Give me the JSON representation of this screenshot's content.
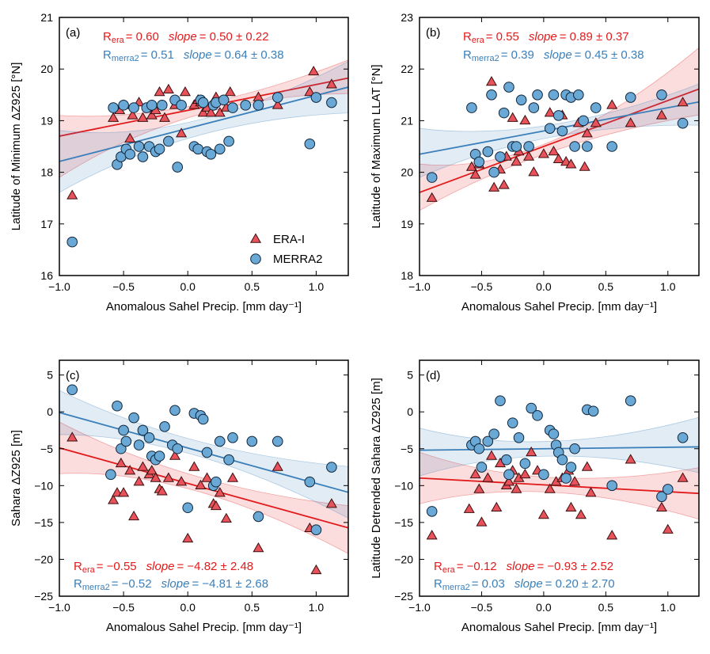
{
  "figure": {
    "colors": {
      "era": "#e31a1c",
      "merra": "#3a7fba",
      "era_face": "#e8525a",
      "merra_face": "#6aa8d6",
      "axis": "#000000"
    },
    "legend": {
      "era_label": "ERA-I",
      "merra_label": "MERRA2"
    }
  },
  "chart_data": [
    {
      "type": "scatter",
      "panel_label": "(a)",
      "xlabel": "Anomalous Sahel Precip. [mm day⁻¹]",
      "ylabel": "Latitude of Minimum ΔZ925 [°N]",
      "xlim": [
        -1.0,
        1.25
      ],
      "ylim": [
        16,
        21
      ],
      "xticks": [
        -1.0,
        -0.5,
        0.0,
        0.5,
        1.0
      ],
      "xtick_labels": [
        "−1.0",
        "−0.5",
        "0.0",
        "0.5",
        "1.0"
      ],
      "yticks": [
        16,
        17,
        18,
        19,
        20,
        21
      ],
      "ytick_labels": [
        "16",
        "17",
        "18",
        "19",
        "20",
        "21"
      ],
      "legend": true,
      "stats": {
        "era": {
          "r_prefix": "R",
          "r_sub": "era",
          "r_value": "= 0.60",
          "slope_label": "slope",
          "slope_value": "= 0.50 ± 0.22"
        },
        "merra": {
          "r_prefix": "R",
          "r_sub": "merra2",
          "r_value": "= 0.51",
          "slope_label": "slope",
          "slope_value": "= 0.64 ± 0.38"
        }
      },
      "series": [
        {
          "name": "ERA-I",
          "marker": "triangle",
          "fit": {
            "intercept": 19.2,
            "slope": 0.5,
            "band_lo": [
              0.8,
              0.1,
              0.3
            ],
            "band_hi": [
              0.4,
              0.1,
              0.35
            ]
          },
          "x": [
            -0.9,
            -0.58,
            -0.53,
            -0.5,
            -0.45,
            -0.43,
            -0.38,
            -0.35,
            -0.3,
            -0.28,
            -0.25,
            -0.22,
            -0.18,
            -0.15,
            -0.1,
            -0.05,
            -0.02,
            0.05,
            0.08,
            0.1,
            0.12,
            0.15,
            0.18,
            0.2,
            0.22,
            0.25,
            0.3,
            0.33,
            0.55,
            0.7,
            0.95,
            0.98,
            1.12
          ],
          "y": [
            17.55,
            19.05,
            19.2,
            19.3,
            18.65,
            19.1,
            19.35,
            19.05,
            19.25,
            19.1,
            19.2,
            19.55,
            19.05,
            19.6,
            19.3,
            18.75,
            19.55,
            19.3,
            19.4,
            19.35,
            19.15,
            19.25,
            19.15,
            19.35,
            19.45,
            19.15,
            19.25,
            19.55,
            19.45,
            19.3,
            19.55,
            19.95,
            19.7
          ]
        },
        {
          "name": "MERRA2",
          "marker": "circle",
          "fit": {
            "intercept": 18.85,
            "slope": 0.64,
            "band_lo": [
              0.6,
              0.15,
              0.5
            ],
            "band_hi": [
              0.6,
              0.15,
              0.5
            ]
          },
          "x": [
            -0.9,
            -0.58,
            -0.55,
            -0.52,
            -0.5,
            -0.48,
            -0.45,
            -0.42,
            -0.38,
            -0.35,
            -0.32,
            -0.3,
            -0.28,
            -0.25,
            -0.22,
            -0.2,
            -0.15,
            -0.1,
            -0.08,
            -0.05,
            0.05,
            0.08,
            0.1,
            0.12,
            0.15,
            0.18,
            0.2,
            0.22,
            0.25,
            0.28,
            0.32,
            0.35,
            0.45,
            0.55,
            0.7,
            0.95,
            1.0,
            1.12
          ],
          "y": [
            16.65,
            19.25,
            18.15,
            18.3,
            19.3,
            18.45,
            18.35,
            19.25,
            18.5,
            18.3,
            19.25,
            18.5,
            19.3,
            18.4,
            18.45,
            19.3,
            18.6,
            19.4,
            18.1,
            19.3,
            18.5,
            18.45,
            19.4,
            19.35,
            18.4,
            18.35,
            19.3,
            19.35,
            18.45,
            19.4,
            18.6,
            19.25,
            19.3,
            19.3,
            19.45,
            18.55,
            19.45,
            19.35
          ]
        }
      ]
    },
    {
      "type": "scatter",
      "panel_label": "(b)",
      "xlabel": "Anomalous Sahel Precip. [mm day⁻¹]",
      "ylabel": "Latitude of Maximum LLAT [°N]",
      "xlim": [
        -1.0,
        1.25
      ],
      "ylim": [
        18,
        23
      ],
      "xticks": [
        -1.0,
        -0.5,
        0.0,
        0.5,
        1.0
      ],
      "xtick_labels": [
        "−1.0",
        "−0.5",
        "0.0",
        "0.5",
        "1.0"
      ],
      "yticks": [
        18,
        19,
        20,
        21,
        22,
        23
      ],
      "ytick_labels": [
        "18",
        "19",
        "20",
        "21",
        "22",
        "23"
      ],
      "legend": false,
      "stats": {
        "era": {
          "r_prefix": "R",
          "r_sub": "era",
          "r_value": "= 0.55",
          "slope_label": "slope",
          "slope_value": "= 0.89 ± 0.37"
        },
        "merra": {
          "r_prefix": "R",
          "r_sub": "merra2",
          "r_value": "= 0.39",
          "slope_label": "slope",
          "slope_value": "= 0.45 ± 0.38"
        }
      },
      "series": [
        {
          "name": "ERA-I",
          "marker": "triangle",
          "fit": {
            "intercept": 20.5,
            "slope": 0.89,
            "band_lo": [
              0.35,
              0.1,
              0.5
            ],
            "band_hi": [
              0.55,
              0.1,
              0.8
            ]
          },
          "x": [
            -0.9,
            -0.58,
            -0.55,
            -0.52,
            -0.42,
            -0.4,
            -0.35,
            -0.32,
            -0.3,
            -0.25,
            -0.22,
            -0.2,
            -0.15,
            -0.12,
            -0.08,
            0.0,
            0.05,
            0.08,
            0.12,
            0.15,
            0.18,
            0.22,
            0.28,
            0.33,
            0.35,
            0.42,
            0.55,
            0.7,
            0.95,
            1.12
          ],
          "y": [
            19.5,
            20.1,
            19.95,
            20.15,
            21.75,
            19.7,
            20.05,
            19.75,
            20.3,
            21.05,
            20.2,
            20.4,
            21.0,
            20.3,
            20.0,
            20.35,
            21.15,
            20.4,
            20.25,
            21.1,
            20.2,
            20.15,
            20.95,
            20.1,
            20.75,
            20.95,
            21.3,
            20.95,
            21.1,
            21.35
          ]
        },
        {
          "name": "MERRA2",
          "marker": "circle",
          "fit": {
            "intercept": 20.8,
            "slope": 0.45,
            "band_lo": [
              0.45,
              0.12,
              0.45
            ],
            "band_hi": [
              0.5,
              0.12,
              0.35
            ]
          },
          "x": [
            -0.9,
            -0.58,
            -0.55,
            -0.52,
            -0.45,
            -0.42,
            -0.4,
            -0.35,
            -0.32,
            -0.28,
            -0.25,
            -0.22,
            -0.18,
            -0.12,
            -0.08,
            -0.05,
            0.05,
            0.08,
            0.12,
            0.15,
            0.18,
            0.22,
            0.25,
            0.28,
            0.32,
            0.35,
            0.42,
            0.55,
            0.7,
            0.95,
            1.12
          ],
          "y": [
            19.9,
            21.25,
            20.35,
            20.2,
            20.4,
            21.5,
            20.0,
            20.3,
            21.15,
            21.65,
            20.5,
            20.5,
            21.4,
            20.5,
            21.25,
            21.5,
            20.85,
            21.5,
            21.1,
            20.8,
            21.5,
            21.45,
            20.5,
            21.5,
            21.0,
            20.5,
            21.25,
            20.5,
            21.45,
            21.5,
            20.95
          ]
        }
      ]
    },
    {
      "type": "scatter",
      "panel_label": "(c)",
      "xlabel": "Anomalous Sahel Precip. [mm day⁻¹]",
      "ylabel": "Sahara ΔZ925 [m]",
      "xlim": [
        -1.0,
        1.25
      ],
      "ylim": [
        -25,
        7
      ],
      "xticks": [
        -1.0,
        -0.5,
        0.0,
        0.5,
        1.0
      ],
      "xtick_labels": [
        "−1.0",
        "−0.5",
        "0.0",
        "0.5",
        "1.0"
      ],
      "yticks": [
        -25,
        -20,
        -15,
        -10,
        -5,
        0,
        5
      ],
      "ytick_labels": [
        "−25",
        "−20",
        "−15",
        "−10",
        "−5",
        "0",
        "5"
      ],
      "legend": false,
      "stats": {
        "era": {
          "r_prefix": "R",
          "r_sub": "era",
          "r_value": "= −0.55",
          "slope_label": "slope",
          "slope_value": "= −4.82 ± 2.48"
        },
        "merra": {
          "r_prefix": "R",
          "r_sub": "merra2",
          "r_value": "= −0.52",
          "slope_label": "slope",
          "slope_value": "= −4.81 ± 2.68"
        }
      },
      "series": [
        {
          "name": "ERA-I",
          "marker": "triangle",
          "fit": {
            "intercept": -9.7,
            "slope": -4.82,
            "band_lo": [
              3.5,
              1.0,
              3.5
            ],
            "band_hi": [
              3.5,
              1.0,
              3.0
            ]
          },
          "x": [
            -0.9,
            -0.58,
            -0.55,
            -0.52,
            -0.5,
            -0.45,
            -0.42,
            -0.38,
            -0.35,
            -0.3,
            -0.28,
            -0.25,
            -0.22,
            -0.2,
            -0.15,
            -0.1,
            -0.05,
            0.0,
            0.05,
            0.1,
            0.15,
            0.2,
            0.22,
            0.25,
            0.3,
            0.35,
            0.55,
            0.7,
            0.95,
            1.0,
            1.12
          ],
          "y": [
            -3.5,
            -12.0,
            -11.0,
            -7.0,
            -11.0,
            -8.0,
            -14.2,
            -9.5,
            -7.5,
            -8.5,
            -8.0,
            -9.0,
            -10.5,
            -10.8,
            -9.0,
            -6.0,
            -9.5,
            -17.2,
            -7.5,
            -10.0,
            -9.0,
            -12.5,
            -12.8,
            -11.0,
            -14.5,
            -9.0,
            -18.5,
            -7.5,
            -15.8,
            -21.5,
            -12.5
          ]
        },
        {
          "name": "MERRA2",
          "marker": "circle",
          "fit": {
            "intercept": -4.9,
            "slope": -4.81,
            "band_lo": [
              3.0,
              1.0,
              3.5
            ],
            "band_hi": [
              3.0,
              1.0,
              3.5
            ]
          },
          "x": [
            -0.9,
            -0.6,
            -0.55,
            -0.52,
            -0.5,
            -0.48,
            -0.42,
            -0.38,
            -0.35,
            -0.3,
            -0.28,
            -0.25,
            -0.22,
            -0.18,
            -0.12,
            -0.1,
            -0.08,
            0.0,
            0.05,
            0.1,
            0.12,
            0.15,
            0.2,
            0.22,
            0.25,
            0.32,
            0.35,
            0.5,
            0.55,
            0.7,
            0.95,
            1.0,
            1.12
          ],
          "y": [
            3.0,
            -8.5,
            0.8,
            -5.0,
            -2.5,
            -4.0,
            -0.8,
            -4.5,
            -2.5,
            -3.5,
            -6.0,
            -6.5,
            -6.0,
            -2.0,
            -4.5,
            0.2,
            -5.0,
            -13.0,
            -0.2,
            -0.5,
            -1.0,
            -5.5,
            -10.0,
            -9.5,
            -4.0,
            -6.5,
            -3.5,
            -4.0,
            -14.2,
            -4.0,
            -9.5,
            -16.0,
            -7.5
          ]
        }
      ]
    },
    {
      "type": "scatter",
      "panel_label": "(d)",
      "xlabel": "Anomalous Sahel Precip. [mm day⁻¹]",
      "ylabel": "Latitude Detrended Sahara ΔZ925  [m]",
      "xlim": [
        -1.0,
        1.25
      ],
      "ylim": [
        -25,
        7
      ],
      "xticks": [
        -1.0,
        -0.5,
        0.0,
        0.5,
        1.0
      ],
      "xtick_labels": [
        "−1.0",
        "−0.5",
        "0.0",
        "0.5",
        "1.0"
      ],
      "yticks": [
        -25,
        -20,
        -15,
        -10,
        -5,
        0,
        5
      ],
      "ytick_labels": [
        "−25",
        "−20",
        "−15",
        "−10",
        "−5",
        "0",
        "5"
      ],
      "legend": false,
      "stats": {
        "era": {
          "r_prefix": "R",
          "r_sub": "era",
          "r_value": "= −0.12",
          "slope_label": "slope",
          "slope_value": "= −0.93 ± 2.52"
        },
        "merra": {
          "r_prefix": "R",
          "r_sub": "merra2",
          "r_value": "= 0.03",
          "slope_label": "slope",
          "slope_value": "= 0.20 ± 2.70"
        }
      },
      "series": [
        {
          "name": "ERA-I",
          "marker": "triangle",
          "fit": {
            "intercept": -9.9,
            "slope": -0.93,
            "band_lo": [
              3.5,
              1.0,
              3.5
            ],
            "band_hi": [
              3.5,
              1.0,
              3.5
            ]
          },
          "x": [
            -0.9,
            -0.6,
            -0.55,
            -0.52,
            -0.5,
            -0.45,
            -0.42,
            -0.38,
            -0.35,
            -0.3,
            -0.28,
            -0.25,
            -0.22,
            -0.2,
            -0.15,
            -0.1,
            -0.05,
            0.0,
            0.05,
            0.1,
            0.15,
            0.2,
            0.22,
            0.25,
            0.3,
            0.35,
            0.38,
            0.55,
            0.7,
            0.95,
            1.0,
            1.12
          ],
          "y": [
            -16.8,
            -13.2,
            -8.5,
            -10.5,
            -15.0,
            -9.0,
            -6.0,
            -13.0,
            -7.0,
            -10.0,
            -9.5,
            -8.0,
            -10.5,
            -9.0,
            -8.5,
            -5.5,
            -8.0,
            -14.0,
            -10.5,
            -9.5,
            -9.0,
            -8.0,
            -13.0,
            -9.5,
            -14.0,
            -7.5,
            -11.0,
            -16.8,
            -6.5,
            -13.0,
            -16.0,
            -9.0
          ]
        },
        {
          "name": "MERRA2",
          "marker": "circle",
          "fit": {
            "intercept": -5.0,
            "slope": 0.2,
            "band_lo": [
              3.5,
              1.0,
              3.5
            ],
            "band_hi": [
              3.0,
              1.0,
              4.0
            ]
          },
          "x": [
            -0.9,
            -0.58,
            -0.55,
            -0.52,
            -0.5,
            -0.45,
            -0.4,
            -0.35,
            -0.3,
            -0.28,
            -0.25,
            -0.2,
            -0.15,
            -0.1,
            -0.05,
            0.0,
            0.05,
            0.08,
            0.1,
            0.12,
            0.15,
            0.18,
            0.22,
            0.25,
            0.35,
            0.4,
            0.55,
            0.7,
            0.95,
            1.0,
            1.12
          ],
          "y": [
            -13.5,
            -4.5,
            -4.0,
            -5.0,
            -7.5,
            -4.0,
            -3.0,
            1.5,
            -6.5,
            -8.5,
            -1.5,
            -3.5,
            -7.0,
            0.5,
            -0.5,
            -8.5,
            -2.5,
            -3.0,
            -4.5,
            -5.5,
            -6.5,
            -9.0,
            -7.5,
            -5.0,
            0.3,
            0.1,
            -10.0,
            1.5,
            -11.5,
            -10.5,
            -3.5
          ]
        }
      ]
    }
  ]
}
